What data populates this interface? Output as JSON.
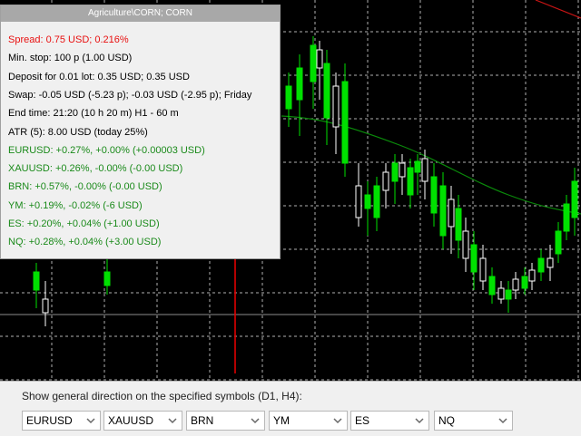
{
  "info_panel": {
    "title": "Agriculture\\CORN; CORN",
    "lines": [
      {
        "text": "Spread: 0.75 USD; 0.216%",
        "color": "#e81010"
      },
      {
        "text": "Min. stop: 100 p (1.00 USD)",
        "color": "#000000"
      },
      {
        "text": "Deposit for 0.01 lot: 0.35 USD; 0.35 USD",
        "color": "#000000"
      },
      {
        "text": "Swap: -0.05 USD (-5.23 p); -0.03 USD (-2.95 p); Friday",
        "color": "#000000"
      },
      {
        "text": "End time: 21:20 (10 h 20 m) H1 - 60 m",
        "color": "#000000"
      },
      {
        "text": "ATR (5): 8.00 USD (today 25%)",
        "color": "#000000"
      },
      {
        "text": "EURUSD: +0.27%, +0.00% (+0.00003 USD)",
        "color": "#1a8a1a"
      },
      {
        "text": "XAUUSD: +0.26%, -0.00% (-0.00 USD)",
        "color": "#1a8a1a"
      },
      {
        "text": "BRN: +0.57%, -0.00% (-0.00 USD)",
        "color": "#1a8a1a"
      },
      {
        "text": "YM: +0.19%, -0.02% (-6 USD)",
        "color": "#1a8a1a"
      },
      {
        "text": "ES: +0.20%, +0.04% (+1.00 USD)",
        "color": "#1a8a1a"
      },
      {
        "text": "NQ: +0.28%, +0.04% (+3.00 USD)",
        "color": "#1a8a1a"
      }
    ]
  },
  "settings": {
    "label": "Show general direction on the specified symbols (D1, H4):",
    "symbols": [
      "EURUSD",
      "XAUUSD",
      "BRN",
      "YM",
      "ES",
      "NQ"
    ]
  },
  "colors": {
    "chart_background": "#000000",
    "candle_bull": "#00e000",
    "candle_bear": "#ffffff",
    "moving_average": "#0a8a0a",
    "annotation": "#e00000"
  }
}
